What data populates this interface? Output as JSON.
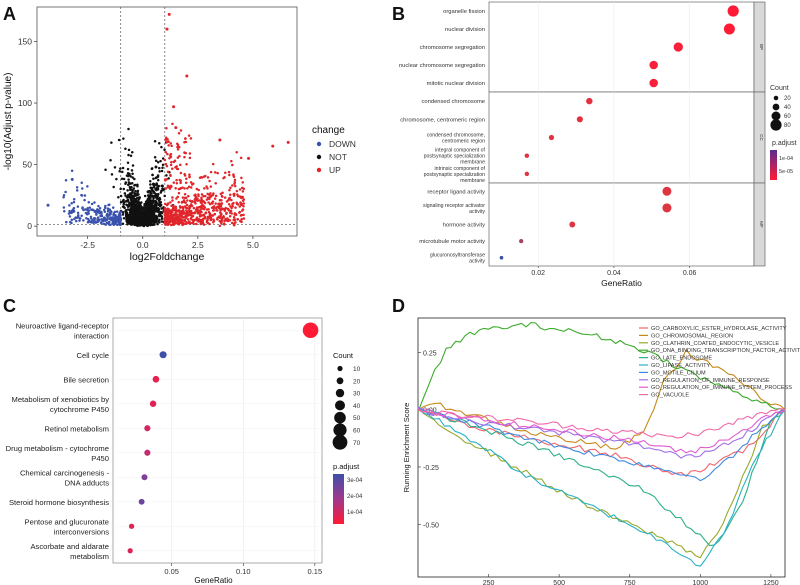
{
  "panel_letters": {
    "a": "A",
    "b": "B",
    "c": "C",
    "d": "D"
  },
  "chart_data": [
    {
      "panel": "A",
      "type": "scatter",
      "title": "",
      "xlabel": "log2Foldchange",
      "ylabel": "-log10(Adjust p-value)",
      "xlim": [
        -4.8,
        7.0
      ],
      "ylim": [
        -8,
        178
      ],
      "xticks": [
        -2.5,
        0,
        2.5,
        5
      ],
      "xtick_labels": [
        "-2.5",
        "0.0",
        "2.5",
        "5.0"
      ],
      "yticks": [
        0,
        50,
        100,
        150
      ],
      "ytick_labels": [
        "0",
        "50",
        "100",
        "150"
      ],
      "vlines": [
        -1,
        1
      ],
      "hline": 1.3,
      "legend_title": "change",
      "legend_position": "right",
      "series": [
        {
          "name": "DOWN",
          "color": "#3a52ad"
        },
        {
          "name": "NOT",
          "color": "#111111"
        },
        {
          "name": "UP",
          "color": "#e0262b"
        }
      ],
      "highlight_points": [
        {
          "x": 1.2,
          "y": 172,
          "series": "UP"
        },
        {
          "x": 1.1,
          "y": 160,
          "series": "UP"
        },
        {
          "x": 2.0,
          "y": 122,
          "series": "UP"
        },
        {
          "x": 1.4,
          "y": 97,
          "series": "UP"
        },
        {
          "x": 1.5,
          "y": 80,
          "series": "UP"
        },
        {
          "x": 3.5,
          "y": 70,
          "series": "UP"
        },
        {
          "x": 6.6,
          "y": 68,
          "series": "UP"
        },
        {
          "x": 5.9,
          "y": 65,
          "series": "UP"
        },
        {
          "x": 4.8,
          "y": 55,
          "series": "UP"
        },
        {
          "x": 0.6,
          "y": 48,
          "series": "NOT"
        },
        {
          "x": -3.2,
          "y": 38,
          "series": "DOWN"
        },
        {
          "x": -4.3,
          "y": 17,
          "series": "DOWN"
        }
      ]
    },
    {
      "panel": "B",
      "type": "scatter",
      "subtype": "dotplot",
      "xlabel": "GeneRatio",
      "xlim": [
        0.007,
        0.077
      ],
      "xticks": [
        0.02,
        0.04,
        0.06
      ],
      "xtick_labels": [
        "0.02",
        "0.04",
        "0.06"
      ],
      "facets": [
        "BP",
        "CC",
        "MF"
      ],
      "terms": [
        {
          "label": [
            "organelle fission"
          ],
          "facet": "BP",
          "x": 0.0715,
          "count": 80,
          "padj": 1e-06
        },
        {
          "label": [
            "nuclear division"
          ],
          "facet": "BP",
          "x": 0.0705,
          "count": 78,
          "padj": 1e-06
        },
        {
          "label": [
            "chromosome segregation"
          ],
          "facet": "BP",
          "x": 0.057,
          "count": 63,
          "padj": 2e-06
        },
        {
          "label": [
            "nuclear chromosome segregation"
          ],
          "facet": "BP",
          "x": 0.0505,
          "count": 56,
          "padj": 2e-06
        },
        {
          "label": [
            "mitotic nuclear division"
          ],
          "facet": "BP",
          "x": 0.0505,
          "count": 56,
          "padj": 2e-06
        },
        {
          "label": [
            "condensed chromosome"
          ],
          "facet": "CC",
          "x": 0.0335,
          "count": 37,
          "padj": 1e-05
        },
        {
          "label": [
            "chromosome, centromeric region"
          ],
          "facet": "CC",
          "x": 0.031,
          "count": 34,
          "padj": 1e-05
        },
        {
          "label": [
            "condensed chromosome,",
            "centromeric region"
          ],
          "facet": "CC",
          "x": 0.0235,
          "count": 26,
          "padj": 2e-05
        },
        {
          "label": [
            "integral component of",
            "postsynaptic specialization",
            "membrane"
          ],
          "facet": "CC",
          "x": 0.017,
          "count": 19,
          "padj": 2e-05
        },
        {
          "label": [
            "intrinsic component of",
            "postsynaptic specialization",
            "membrane"
          ],
          "facet": "CC",
          "x": 0.017,
          "count": 19,
          "padj": 2e-05
        },
        {
          "label": [
            "receptor ligand activity"
          ],
          "facet": "MF",
          "x": 0.054,
          "count": 60,
          "padj": 2e-05
        },
        {
          "label": [
            "signaling receptor activator",
            "activity"
          ],
          "facet": "MF",
          "x": 0.054,
          "count": 61,
          "padj": 2e-05
        },
        {
          "label": [
            "hormone activity"
          ],
          "facet": "MF",
          "x": 0.029,
          "count": 32,
          "padj": 2e-05
        },
        {
          "label": [
            "microtubule motor activity"
          ],
          "facet": "MF",
          "x": 0.0155,
          "count": 17,
          "padj": 5e-05
        },
        {
          "label": [
            "glucuronosyltransferase",
            "activity"
          ],
          "facet": "MF",
          "x": 0.0103,
          "count": 11,
          "padj": 0.00013
        }
      ],
      "size_legend": {
        "title": "Count",
        "values": [
          20,
          40,
          60,
          80
        ],
        "labels": [
          "20",
          "40",
          "60",
          "80"
        ]
      },
      "color_legend": {
        "title": "p.adjust",
        "tick_labels": [
          "1e-04",
          "5e-05"
        ],
        "colors": [
          "#5b2b91",
          "#ff1a36"
        ]
      }
    },
    {
      "panel": "C",
      "type": "scatter",
      "subtype": "dotplot",
      "xlabel": "GeneRatio",
      "xlim": [
        0.009,
        0.155
      ],
      "xticks": [
        0.05,
        0.1,
        0.15
      ],
      "xtick_labels": [
        "0.05",
        "0.10",
        "0.15"
      ],
      "terms": [
        {
          "label": [
            "Neuroactive ligand-receptor",
            "interaction"
          ],
          "x": 0.147,
          "count": 75,
          "padj": 8e-06
        },
        {
          "label": [
            "Cell cycle"
          ],
          "x": 0.044,
          "count": 22,
          "padj": 0.0003
        },
        {
          "label": [
            "Bile secretion"
          ],
          "x": 0.039,
          "count": 19,
          "padj": 5e-05
        },
        {
          "label": [
            "Metabolism of xenobiotics by",
            "cytochrome P450"
          ],
          "x": 0.037,
          "count": 18,
          "padj": 6e-05
        },
        {
          "label": [
            "Retinol metabolism"
          ],
          "x": 0.033,
          "count": 16,
          "padj": 8e-05
        },
        {
          "label": [
            "Drug metabolism - cytochrome",
            "P450"
          ],
          "x": 0.033,
          "count": 16,
          "padj": 0.0001
        },
        {
          "label": [
            "Chemical carcinogenesis -",
            "DNA adducts"
          ],
          "x": 0.031,
          "count": 15,
          "padj": 0.0002
        },
        {
          "label": [
            "Steroid hormone biosynthesis"
          ],
          "x": 0.029,
          "count": 14,
          "padj": 0.00023
        },
        {
          "label": [
            "Pentose and glucuronate",
            "interconversions"
          ],
          "x": 0.022,
          "count": 11,
          "padj": 6e-05
        },
        {
          "label": [
            "Ascorbate and aldarate",
            "metabolism"
          ],
          "x": 0.021,
          "count": 10,
          "padj": 6e-05
        }
      ],
      "size_legend": {
        "title": "Count",
        "values": [
          10,
          20,
          30,
          40,
          50,
          60,
          70
        ],
        "labels": [
          "10",
          "20",
          "30",
          "40",
          "50",
          "60",
          "70"
        ]
      },
      "color_legend": {
        "title": "p.adjust",
        "tick_labels": [
          "3e-04",
          "2e-04",
          "1e-04"
        ],
        "colors": [
          "#3e4fa8",
          "#a0388e",
          "#ff1a36"
        ]
      }
    },
    {
      "panel": "D",
      "type": "line",
      "title": "",
      "xlabel": "",
      "ylabel": "Running Enrichment Score",
      "xlim": [
        0,
        1300
      ],
      "ylim": [
        -0.73,
        0.4
      ],
      "xticks": [
        250,
        500,
        750,
        1000,
        1250
      ],
      "xtick_labels": [
        "250",
        "500",
        "750",
        "1000",
        "1250"
      ],
      "yticks": [
        0.25,
        0.0,
        -0.25,
        -0.5
      ],
      "ytick_labels": [
        "0.25",
        "0.00",
        "-0.25",
        "-0.50"
      ],
      "legend_position": "top-right",
      "series": [
        {
          "name": "GO_CARBOXYLIC_ESTER_HYDROLASE_ACTIVITY",
          "color": "#f0656f",
          "x": [
            0,
            200,
            500,
            700,
            850,
            950,
            1050,
            1150,
            1230,
            1280,
            1300
          ],
          "y": [
            0,
            -0.08,
            -0.15,
            -0.2,
            -0.26,
            -0.28,
            -0.24,
            -0.18,
            -0.1,
            0,
            0
          ]
        },
        {
          "name": "GO_CHROMOSOMAL_REGION",
          "color": "#c58a1a",
          "x": [
            0,
            80,
            400,
            700,
            800,
            870,
            950,
            1100,
            1250,
            1300
          ],
          "y": [
            0,
            0.02,
            -0.1,
            -0.17,
            -0.1,
            0.12,
            0.25,
            0.16,
            0.02,
            0
          ]
        },
        {
          "name": "GO_CLATHRIN_COATED_ENDOCYTIC_VESICLE",
          "color": "#97a82b",
          "x": [
            0,
            150,
            600,
            900,
            1000,
            1080,
            1150,
            1220,
            1300
          ],
          "y": [
            0,
            -0.12,
            -0.42,
            -0.58,
            -0.64,
            -0.5,
            -0.3,
            -0.08,
            0
          ]
        },
        {
          "name": "GO_DNA_BINDING_TRANSCRIPTION_FACTOR_ACTIVITY",
          "color": "#3bab2a",
          "x": [
            0,
            40,
            100,
            200,
            300,
            400,
            500,
            600,
            700,
            800,
            900,
            1000,
            1100,
            1200,
            1250,
            1300
          ],
          "y": [
            0,
            0.12,
            0.26,
            0.34,
            0.36,
            0.37,
            0.35,
            0.33,
            0.3,
            0.26,
            0.2,
            0.14,
            0.09,
            0.04,
            0.02,
            0
          ]
        },
        {
          "name": "GO_LATE_ENDOSOME",
          "color": "#2cb08a",
          "x": [
            0,
            150,
            500,
            800,
            950,
            1050,
            1150,
            1250,
            1300
          ],
          "y": [
            0,
            -0.05,
            -0.2,
            -0.35,
            -0.5,
            -0.6,
            -0.4,
            -0.05,
            0
          ]
        },
        {
          "name": "GO_LIPASE_ACTIVITY",
          "color": "#28b0c4",
          "x": [
            0,
            150,
            400,
            750,
            900,
            1000,
            1100,
            1200,
            1300
          ],
          "y": [
            0,
            -0.1,
            -0.3,
            -0.5,
            -0.6,
            -0.68,
            -0.5,
            -0.2,
            0
          ]
        },
        {
          "name": "GO_MOTILE_CILIUM",
          "color": "#3f8ae0",
          "x": [
            0,
            200,
            500,
            800,
            1000,
            1100,
            1200,
            1300
          ],
          "y": [
            0,
            -0.06,
            -0.16,
            -0.24,
            -0.3,
            -0.22,
            -0.1,
            0
          ]
        },
        {
          "name": "GO_REGULATION_OF_IMMUNE_RESPONSE",
          "color": "#9f6ee8",
          "x": [
            0,
            200,
            500,
            800,
            950,
            1050,
            1150,
            1250,
            1300
          ],
          "y": [
            0,
            -0.05,
            -0.1,
            -0.16,
            -0.21,
            -0.17,
            -0.11,
            -0.03,
            0
          ]
        },
        {
          "name": "GO_REGULATION_OF_IMMUNE_SYSTEM_PROCESS",
          "color": "#e05dd0",
          "x": [
            0,
            200,
            500,
            800,
            950,
            1050,
            1150,
            1250,
            1300
          ],
          "y": [
            0,
            -0.04,
            -0.09,
            -0.14,
            -0.19,
            -0.15,
            -0.09,
            -0.02,
            0
          ]
        },
        {
          "name": "GO_VACUOLE",
          "color": "#f06aa8",
          "x": [
            0,
            100,
            300,
            600,
            900,
            1050,
            1150,
            1250,
            1300
          ],
          "y": [
            0,
            -0.02,
            -0.04,
            -0.08,
            -0.12,
            -0.09,
            -0.04,
            -0.01,
            0
          ]
        }
      ]
    }
  ]
}
